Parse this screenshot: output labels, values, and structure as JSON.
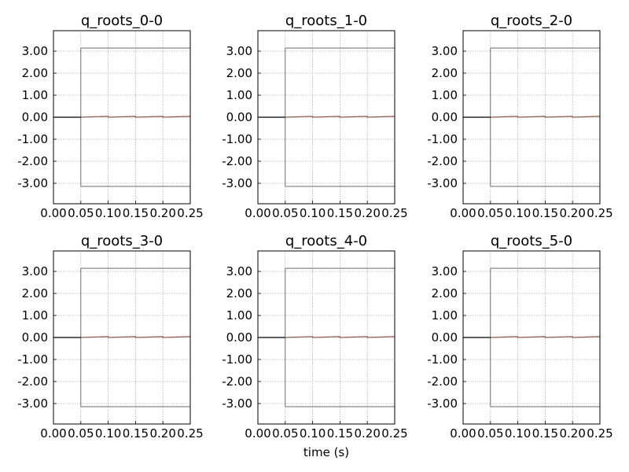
{
  "figure": {
    "xlabel": "time (s)"
  },
  "chart_data": [
    {
      "type": "line",
      "title": "q_roots_0-0",
      "xlim": [
        0.0,
        0.25
      ],
      "ylim": [
        -3.93,
        3.93
      ],
      "x_ticks": [
        "0.00",
        "0.05",
        "0.10",
        "0.15",
        "0.20",
        "0.25"
      ],
      "y_ticks": [
        "3.00",
        "2.00",
        "1.00",
        "0.00",
        "-1.00",
        "-2.00",
        "-3.00"
      ],
      "grid": true,
      "bounds": {
        "x_start": 0.05,
        "upper": 3.1416,
        "lower": -3.1416,
        "color": "#555555"
      },
      "series": [
        {
          "color": "#000000",
          "x": [
            0.0,
            0.05
          ],
          "y": [
            0.0,
            0.0
          ]
        },
        {
          "color": "#8b5a4f",
          "x": [
            0.05,
            0.1,
            0.1,
            0.15,
            0.15,
            0.2,
            0.2,
            0.25
          ],
          "y": [
            0.0,
            0.04,
            0.0,
            0.04,
            0.0,
            0.04,
            0.0,
            0.04
          ]
        }
      ]
    },
    {
      "type": "line",
      "title": "q_roots_1-0",
      "xlim": [
        0.0,
        0.25
      ],
      "ylim": [
        -3.93,
        3.93
      ],
      "x_ticks": [
        "0.00",
        "0.05",
        "0.10",
        "0.15",
        "0.20",
        "0.25"
      ],
      "y_ticks": [
        "3.00",
        "2.00",
        "1.00",
        "0.00",
        "-1.00",
        "-2.00",
        "-3.00"
      ],
      "grid": true,
      "bounds": {
        "x_start": 0.05,
        "upper": 3.1416,
        "lower": -3.1416,
        "color": "#555555"
      },
      "series": [
        {
          "color": "#000000",
          "x": [
            0.0,
            0.05
          ],
          "y": [
            0.0,
            0.0
          ]
        },
        {
          "color": "#8b5a4f",
          "x": [
            0.05,
            0.1,
            0.1,
            0.15,
            0.15,
            0.2,
            0.2,
            0.25
          ],
          "y": [
            0.0,
            0.04,
            0.0,
            0.04,
            0.0,
            0.04,
            0.0,
            0.04
          ]
        }
      ]
    },
    {
      "type": "line",
      "title": "q_roots_2-0",
      "xlim": [
        0.0,
        0.25
      ],
      "ylim": [
        -3.93,
        3.93
      ],
      "x_ticks": [
        "0.00",
        "0.05",
        "0.10",
        "0.15",
        "0.20",
        "0.25"
      ],
      "y_ticks": [
        "3.00",
        "2.00",
        "1.00",
        "0.00",
        "-1.00",
        "-2.00",
        "-3.00"
      ],
      "grid": true,
      "bounds": {
        "x_start": 0.05,
        "upper": 3.1416,
        "lower": -3.1416,
        "color": "#555555"
      },
      "series": [
        {
          "color": "#000000",
          "x": [
            0.0,
            0.05
          ],
          "y": [
            0.0,
            0.0
          ]
        },
        {
          "color": "#8b5a4f",
          "x": [
            0.05,
            0.1,
            0.1,
            0.15,
            0.15,
            0.2,
            0.2,
            0.25
          ],
          "y": [
            0.0,
            0.04,
            0.0,
            0.04,
            0.0,
            0.04,
            0.0,
            0.04
          ]
        }
      ]
    },
    {
      "type": "line",
      "title": "q_roots_3-0",
      "xlim": [
        0.0,
        0.25
      ],
      "ylim": [
        -3.93,
        3.93
      ],
      "x_ticks": [
        "0.00",
        "0.05",
        "0.10",
        "0.15",
        "0.20",
        "0.25"
      ],
      "y_ticks": [
        "3.00",
        "2.00",
        "1.00",
        "0.00",
        "-1.00",
        "-2.00",
        "-3.00"
      ],
      "grid": true,
      "bounds": {
        "x_start": 0.05,
        "upper": 3.1416,
        "lower": -3.1416,
        "color": "#555555"
      },
      "series": [
        {
          "color": "#000000",
          "x": [
            0.0,
            0.05
          ],
          "y": [
            0.0,
            0.0
          ]
        },
        {
          "color": "#8b5a4f",
          "x": [
            0.05,
            0.1,
            0.1,
            0.15,
            0.15,
            0.2,
            0.2,
            0.25
          ],
          "y": [
            0.0,
            0.04,
            0.0,
            0.04,
            0.0,
            0.04,
            0.0,
            0.04
          ]
        }
      ]
    },
    {
      "type": "line",
      "title": "q_roots_4-0",
      "xlim": [
        0.0,
        0.25
      ],
      "ylim": [
        -3.93,
        3.93
      ],
      "x_ticks": [
        "0.00",
        "0.05",
        "0.10",
        "0.15",
        "0.20",
        "0.25"
      ],
      "y_ticks": [
        "3.00",
        "2.00",
        "1.00",
        "0.00",
        "-1.00",
        "-2.00",
        "-3.00"
      ],
      "grid": true,
      "bounds": {
        "x_start": 0.05,
        "upper": 3.1416,
        "lower": -3.1416,
        "color": "#555555"
      },
      "series": [
        {
          "color": "#000000",
          "x": [
            0.0,
            0.05
          ],
          "y": [
            0.0,
            0.0
          ]
        },
        {
          "color": "#8b5a4f",
          "x": [
            0.05,
            0.1,
            0.1,
            0.15,
            0.15,
            0.2,
            0.2,
            0.25
          ],
          "y": [
            0.0,
            0.04,
            0.0,
            0.04,
            0.0,
            0.04,
            0.0,
            0.04
          ]
        }
      ]
    },
    {
      "type": "line",
      "title": "q_roots_5-0",
      "xlim": [
        0.0,
        0.25
      ],
      "ylim": [
        -3.93,
        3.93
      ],
      "x_ticks": [
        "0.00",
        "0.05",
        "0.10",
        "0.15",
        "0.20",
        "0.25"
      ],
      "y_ticks": [
        "3.00",
        "2.00",
        "1.00",
        "0.00",
        "-1.00",
        "-2.00",
        "-3.00"
      ],
      "grid": true,
      "bounds": {
        "x_start": 0.05,
        "upper": 3.1416,
        "lower": -3.1416,
        "color": "#555555"
      },
      "series": [
        {
          "color": "#000000",
          "x": [
            0.0,
            0.05
          ],
          "y": [
            0.0,
            0.0
          ]
        },
        {
          "color": "#8b5a4f",
          "x": [
            0.05,
            0.1,
            0.1,
            0.15,
            0.15,
            0.2,
            0.2,
            0.25
          ],
          "y": [
            0.0,
            0.04,
            0.0,
            0.04,
            0.0,
            0.04,
            0.0,
            0.04
          ]
        }
      ]
    }
  ]
}
